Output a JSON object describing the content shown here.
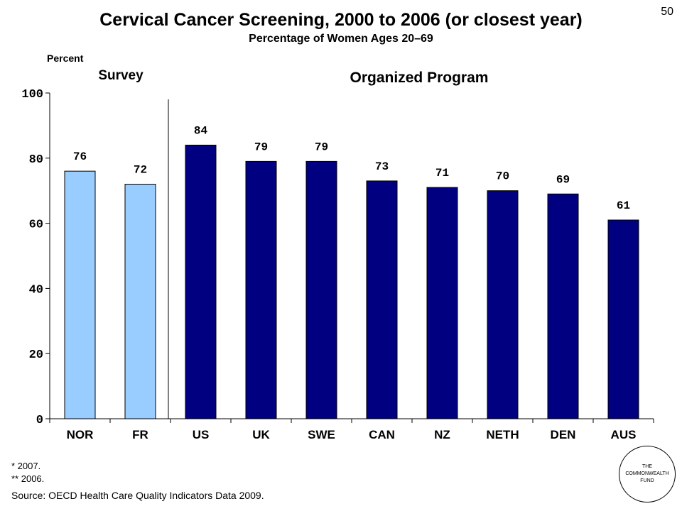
{
  "page_number": "50",
  "chart_data": {
    "type": "bar",
    "title": "Cervical Cancer Screening, 2000 to 2006 (or closest year)",
    "subtitle": "Percentage of Women Ages 20–69",
    "ylabel": "Percent",
    "ylim": [
      0,
      100
    ],
    "yticks": [
      "0",
      "20",
      "40",
      "60",
      "80",
      "100"
    ],
    "ytick_values": [
      0,
      20,
      40,
      60,
      80,
      100
    ],
    "categories": [
      "NOR",
      "FR",
      "US",
      "UK",
      "SWE",
      "CAN",
      "NZ",
      "NETH",
      "DEN",
      "AUS"
    ],
    "values": [
      76,
      72,
      84,
      79,
      79,
      73,
      71,
      70,
      69,
      61
    ],
    "groups": [
      {
        "label": "Survey",
        "count": 2,
        "color": "#99ccff"
      },
      {
        "label": "Organized Program",
        "count": 8,
        "color": "#000080"
      }
    ],
    "grid": false
  },
  "notes": [
    "* 2007.",
    "** 2006."
  ],
  "source": "Source: OECD Health Care Quality Indicators Data 2009.",
  "logo": {
    "lines": [
      "THE",
      "COMMONWEALTH",
      "FUND"
    ]
  }
}
